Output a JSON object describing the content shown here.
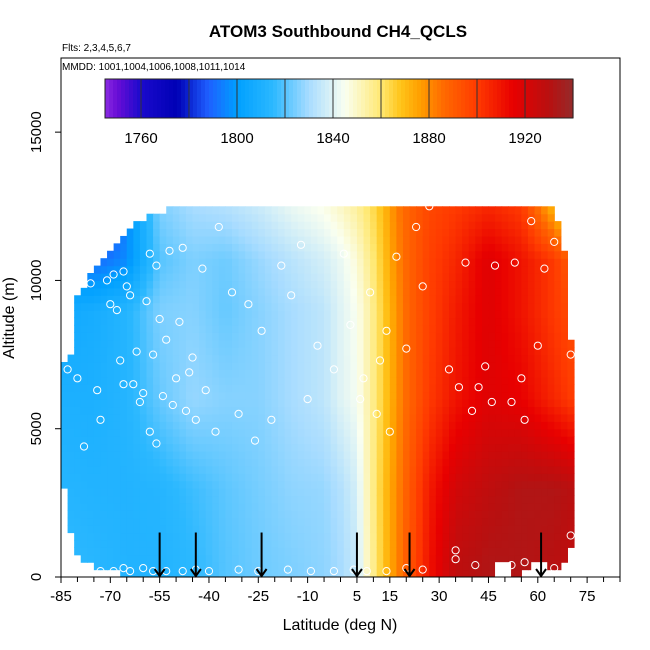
{
  "chart_data": {
    "type": "heatmap",
    "title": "ATOM3 Southbound CH4_QCLS",
    "subtitle_lines": [
      "Flts: 2,3,4,5,6,7",
      "MMDD: 1001,1004,1006,1008,1011,1014"
    ],
    "xlabel": "Latitude (deg N)",
    "ylabel": "Altitude (m)",
    "xlim": [
      -85,
      85
    ],
    "ylim": [
      0,
      17500
    ],
    "x_ticks": [
      -85,
      -70,
      -55,
      -40,
      -25,
      -10,
      5,
      15,
      30,
      45,
      60,
      75
    ],
    "x_minor_ticks": [
      -80,
      -75,
      -65,
      -60,
      -50,
      -45,
      -35,
      -30,
      -20,
      -15,
      -5,
      0,
      10,
      20,
      25,
      35,
      40,
      50,
      55,
      65,
      70,
      80,
      85
    ],
    "y_ticks": [
      0,
      5000,
      10000,
      15000
    ],
    "colorbar": {
      "range": [
        1745,
        1940
      ],
      "ticks": [
        1760,
        1800,
        1840,
        1880,
        1920
      ],
      "boundaries": [
        1760,
        1780,
        1800,
        1820,
        1840,
        1860,
        1880,
        1900,
        1920
      ],
      "colormap": [
        [
          1745,
          "#8a2be2"
        ],
        [
          1750,
          "#6a0dd6"
        ],
        [
          1760,
          "#1a0acc"
        ],
        [
          1775,
          "#0000b5"
        ],
        [
          1788,
          "#1e5fff"
        ],
        [
          1800,
          "#00a0ff"
        ],
        [
          1815,
          "#2bb8ff"
        ],
        [
          1830,
          "#a8dcff"
        ],
        [
          1845,
          "#fafff0"
        ],
        [
          1860,
          "#ffe872"
        ],
        [
          1868,
          "#ffc51a"
        ],
        [
          1876,
          "#ffa000"
        ],
        [
          1886,
          "#ff6a00"
        ],
        [
          1900,
          "#ff3a00"
        ],
        [
          1915,
          "#e80000"
        ],
        [
          1930,
          "#b81010"
        ],
        [
          1940,
          "#952a2a"
        ]
      ]
    },
    "field": {
      "lat_breakpoints": [
        -85,
        -75,
        -65,
        -55,
        -45,
        -35,
        -25,
        -15,
        -5,
        0,
        5,
        8,
        11,
        13,
        15,
        17,
        19,
        22,
        27,
        35,
        45,
        55,
        65,
        70
      ],
      "rows": [
        {
          "alt": 500,
          "vals": [
            1816,
            1814,
            1812,
            1812,
            1815,
            1820,
            1823,
            1825,
            1827,
            1830,
            1836,
            1850,
            1860,
            1868,
            1874,
            1880,
            1887,
            1895,
            1910,
            1928,
            1932,
            1932,
            1930,
            1928
          ]
        },
        {
          "alt": 3000,
          "vals": [
            1813,
            1812,
            1812,
            1813,
            1817,
            1821,
            1824,
            1827,
            1828,
            1832,
            1838,
            1851,
            1861,
            1868,
            1874,
            1880,
            1886,
            1894,
            1908,
            1922,
            1928,
            1932,
            1932,
            1930
          ]
        },
        {
          "alt": 6000,
          "vals": [
            1810,
            1810,
            1813,
            1822,
            1828,
            1826,
            1826,
            1830,
            1834,
            1840,
            1844,
            1852,
            1860,
            1866,
            1872,
            1878,
            1884,
            1890,
            1900,
            1910,
            1918,
            1915,
            1905,
            1900
          ]
        },
        {
          "alt": 9000,
          "vals": [
            1806,
            1808,
            1813,
            1825,
            1826,
            1822,
            1826,
            1830,
            1834,
            1840,
            1845,
            1852,
            1860,
            1866,
            1872,
            1878,
            1884,
            1890,
            1898,
            1908,
            1918,
            1910,
            1900,
            1895
          ]
        },
        {
          "alt": 10700,
          "vals": [
            1795,
            1790,
            1796,
            1820,
            1825,
            1823,
            1828,
            1833,
            1838,
            1842,
            1848,
            1855,
            1862,
            1868,
            1874,
            1880,
            1885,
            1890,
            1898,
            1905,
            1918,
            1910,
            1900,
            1890
          ]
        },
        {
          "alt": 12500,
          "vals": [
            1770,
            1765,
            1795,
            1825,
            1830,
            1832,
            1836,
            1842,
            1846,
            1850,
            1855,
            1860,
            1865,
            1870,
            1876,
            1882,
            1886,
            1890,
            1896,
            1900,
            1905,
            1900,
            1870,
            1850
          ]
        }
      ]
    },
    "coverage": [
      [
        -62,
        0,
        11900
      ],
      [
        -66,
        100,
        11600
      ],
      [
        -69,
        150,
        11100
      ],
      [
        -72,
        200,
        10700
      ],
      [
        -75,
        300,
        10400
      ],
      [
        -77,
        500,
        10000
      ],
      [
        -80,
        700,
        9400
      ],
      [
        -81,
        1000,
        8500
      ],
      [
        -82,
        1500,
        7500
      ],
      [
        -84,
        3000,
        7200
      ],
      [
        -58,
        0,
        12200
      ],
      [
        -53,
        0,
        12400
      ],
      [
        -48,
        0,
        12400
      ],
      [
        -40,
        0,
        12400
      ],
      [
        -25,
        0,
        12400
      ],
      [
        -10,
        0,
        12400
      ],
      [
        0,
        0,
        12600
      ],
      [
        10,
        0,
        12600
      ],
      [
        20,
        0,
        12600
      ],
      [
        25,
        0,
        12600
      ],
      [
        30,
        0,
        12400
      ],
      [
        40,
        0,
        12400
      ],
      [
        50,
        0,
        12400
      ],
      [
        60,
        300,
        12400
      ],
      [
        64,
        300,
        12400
      ],
      [
        66,
        300,
        12000
      ],
      [
        67,
        500,
        11700
      ],
      [
        68,
        600,
        11000
      ],
      [
        69,
        800,
        10000
      ],
      [
        70,
        1000,
        8000
      ],
      [
        70,
        1500,
        7500
      ],
      [
        71,
        1500,
        7000
      ]
    ],
    "data_labels": [],
    "gap_markers": [
      [
        47,
        0,
        500
      ],
      [
        58,
        0,
        500
      ]
    ],
    "observations": [
      [
        -83,
        7000
      ],
      [
        -82,
        9900
      ],
      [
        -80,
        6700
      ],
      [
        -78,
        4400
      ],
      [
        -76,
        9900
      ],
      [
        -74,
        6300
      ],
      [
        -73,
        5300
      ],
      [
        -71,
        10000
      ],
      [
        -70,
        9200
      ],
      [
        -69,
        10200
      ],
      [
        -68,
        9000
      ],
      [
        -67,
        7300
      ],
      [
        -66,
        6500
      ],
      [
        -66,
        10300
      ],
      [
        -65,
        9800
      ],
      [
        -64,
        9500
      ],
      [
        -63,
        6500
      ],
      [
        -62,
        7600
      ],
      [
        -61,
        5900
      ],
      [
        -60,
        6200
      ],
      [
        -59,
        9300
      ],
      [
        -58,
        10900
      ],
      [
        -58,
        4900
      ],
      [
        -57,
        7500
      ],
      [
        -56,
        10500
      ],
      [
        -56,
        4500
      ],
      [
        -55,
        8700
      ],
      [
        -54,
        6100
      ],
      [
        -53,
        8000
      ],
      [
        -52,
        11000
      ],
      [
        -51,
        5800
      ],
      [
        -50,
        6700
      ],
      [
        -49,
        8600
      ],
      [
        -48,
        11100
      ],
      [
        -47,
        5600
      ],
      [
        -46,
        6900
      ],
      [
        -45,
        7400
      ],
      [
        -44,
        5300
      ],
      [
        -42,
        10400
      ],
      [
        -41,
        6300
      ],
      [
        -38,
        4900
      ],
      [
        -37,
        11800
      ],
      [
        -33,
        9600
      ],
      [
        -31,
        5500
      ],
      [
        -28,
        9200
      ],
      [
        -26,
        4600
      ],
      [
        -24,
        8300
      ],
      [
        -21,
        5300
      ],
      [
        -18,
        10500
      ],
      [
        -15,
        9500
      ],
      [
        -12,
        11200
      ],
      [
        -10,
        6000
      ],
      [
        -7,
        7800
      ],
      [
        -2,
        7000
      ],
      [
        1,
        10900
      ],
      [
        3,
        8500
      ],
      [
        6,
        6000
      ],
      [
        7,
        6700
      ],
      [
        9,
        9600
      ],
      [
        11,
        5500
      ],
      [
        12,
        7300
      ],
      [
        14,
        8300
      ],
      [
        15,
        4900
      ],
      [
        17,
        10800
      ],
      [
        20,
        7700
      ],
      [
        23,
        11800
      ],
      [
        25,
        9800
      ],
      [
        27,
        12500
      ],
      [
        33,
        7000
      ],
      [
        36,
        6400
      ],
      [
        38,
        10600
      ],
      [
        40,
        5600
      ],
      [
        42,
        6400
      ],
      [
        44,
        7100
      ],
      [
        46,
        5900
      ],
      [
        47,
        10500
      ],
      [
        52,
        5900
      ],
      [
        53,
        10600
      ],
      [
        55,
        6700
      ],
      [
        56,
        5300
      ],
      [
        58,
        12000
      ],
      [
        60,
        7800
      ],
      [
        62,
        10400
      ],
      [
        65,
        11300
      ],
      [
        70,
        1400
      ],
      [
        70,
        7500
      ],
      [
        -77,
        300
      ],
      [
        -73,
        200
      ],
      [
        -69,
        200
      ],
      [
        -66,
        300
      ],
      [
        -64,
        200
      ],
      [
        -60,
        300
      ],
      [
        -57,
        200
      ],
      [
        -53,
        200
      ],
      [
        -48,
        200
      ],
      [
        -44,
        250
      ],
      [
        -40,
        200
      ],
      [
        -31,
        250
      ],
      [
        -25,
        200
      ],
      [
        -16,
        250
      ],
      [
        -9,
        200
      ],
      [
        -2,
        200
      ],
      [
        4,
        250
      ],
      [
        8,
        200
      ],
      [
        14,
        200
      ],
      [
        20,
        300
      ],
      [
        25,
        250
      ],
      [
        35,
        600
      ],
      [
        35,
        900
      ],
      [
        41,
        400
      ],
      [
        52,
        400
      ],
      [
        56,
        500
      ],
      [
        65,
        300
      ]
    ],
    "flight_arrows": [
      -55,
      -44,
      -24,
      5,
      21,
      61
    ]
  }
}
